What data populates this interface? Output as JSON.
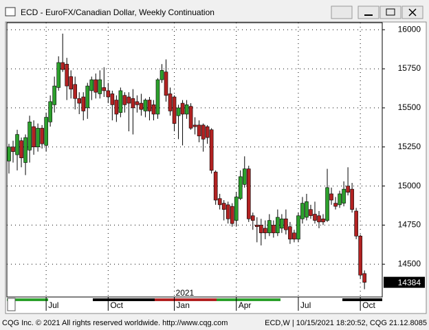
{
  "window_title": "ECD - EuroFX/Canadian Dollar, Weekly Continuation",
  "footer": {
    "left": "CQG Inc. © 2021 All rights reserved worldwide. http://www.cqg.com",
    "right": "ECD,W | 10/15/2021 18:20:52, CQG 21.12.8085"
  },
  "chart_data": {
    "type": "candlestick",
    "up_color": "#2ca02c",
    "down_color": "#b22222",
    "grid": true,
    "x_group_label": "2021",
    "xlim": [
      -0.5,
      90.3
    ],
    "xticks": [
      {
        "value": 9,
        "label": "Jul"
      },
      {
        "value": 24,
        "label": "Oct"
      },
      {
        "value": 40,
        "label": "Jan"
      },
      {
        "value": 55,
        "label": "Apr"
      },
      {
        "value": 70,
        "label": "Jul"
      },
      {
        "value": 85,
        "label": "Oct"
      }
    ],
    "ylim": [
      14290,
      16045
    ],
    "yticks": [
      14500,
      14750,
      15000,
      15250,
      15500,
      15750,
      16000
    ],
    "open": [
      15160,
      15250,
      15200,
      15290,
      15150,
      15230,
      15380,
      15250,
      15370,
      15260,
      15410,
      15520,
      15630,
      15790,
      15780,
      15700,
      15650,
      15560,
      15570,
      15500,
      15610,
      15680,
      15590,
      15630,
      15610,
      15590,
      15550,
      15470,
      15580,
      15570,
      15560,
      15540,
      15530,
      15480,
      15550,
      15520,
      15460,
      15680,
      15730,
      15590,
      15570,
      15450,
      15530,
      15460,
      15510,
      15390,
      15390,
      15390,
      15380,
      15360,
      15090,
      14920,
      14890,
      14880,
      14870,
      14780,
      14920,
      15010,
      15110,
      14810,
      14750,
      14750,
      14730,
      14700,
      14750,
      14700,
      14730,
      14790,
      14740,
      14700,
      14660,
      14790,
      14800,
      14850,
      14820,
      14810,
      14790,
      14780,
      14950,
      14890,
      14880,
      14890,
      15000,
      14980,
      14840,
      14680,
      14440
    ],
    "high": [
      15270,
      15290,
      15360,
      15310,
      15330,
      15450,
      15420,
      15400,
      15390,
      15470,
      15580,
      15700,
      15830,
      15975,
      15820,
      15740,
      15700,
      15600,
      15600,
      15660,
      15700,
      15720,
      15740,
      15760,
      15660,
      15610,
      15580,
      15630,
      15600,
      15600,
      15620,
      15580,
      15590,
      15560,
      15570,
      15550,
      15690,
      15780,
      15810,
      15630,
      15580,
      15520,
      15550,
      15550,
      15530,
      15440,
      15420,
      15400,
      15390,
      15370,
      15100,
      14950,
      14910,
      14900,
      14890,
      14960,
      15100,
      15190,
      15130,
      14830,
      14800,
      14790,
      14780,
      14820,
      14780,
      14850,
      14820,
      14850,
      14770,
      14720,
      14830,
      14930,
      14950,
      14880,
      14900,
      14840,
      14820,
      15110,
      14990,
      14930,
      14970,
      15030,
      15120,
      15020,
      14860,
      14690,
      14460
    ],
    "low": [
      15080,
      15150,
      15100,
      15120,
      15070,
      15150,
      15200,
      15220,
      15240,
      15220,
      15380,
      15470,
      15610,
      15730,
      15550,
      15560,
      15490,
      15460,
      15420,
      15430,
      15550,
      15560,
      15560,
      15570,
      15530,
      15420,
      15410,
      15440,
      15470,
      15350,
      15330,
      15470,
      15450,
      15440,
      15420,
      15420,
      15430,
      15660,
      15540,
      15450,
      15350,
      15300,
      15260,
      15430,
      15360,
      15330,
      15280,
      15220,
      15270,
      15080,
      14880,
      14850,
      14780,
      14760,
      14740,
      14740,
      14910,
      14990,
      14770,
      14720,
      14640,
      14620,
      14660,
      14680,
      14670,
      14680,
      14700,
      14690,
      14630,
      14640,
      14640,
      14760,
      14780,
      14790,
      14760,
      14730,
      14750,
      14770,
      14880,
      14850,
      14860,
      14870,
      14940,
      14830,
      14660,
      14410,
      14340
    ],
    "close": [
      15250,
      15220,
      15330,
      15180,
      15310,
      15410,
      15250,
      15370,
      15270,
      15440,
      15540,
      15640,
      15790,
      15745,
      15640,
      15620,
      15560,
      15530,
      15480,
      15640,
      15680,
      15600,
      15680,
      15610,
      15570,
      15520,
      15460,
      15610,
      15520,
      15530,
      15500,
      15520,
      15490,
      15550,
      15480,
      15460,
      15680,
      15740,
      15580,
      15480,
      15400,
      15500,
      15460,
      15520,
      15370,
      15380,
      15320,
      15300,
      15310,
      15100,
      14910,
      14880,
      14850,
      14790,
      14760,
      14930,
      15060,
      15110,
      14790,
      14780,
      14740,
      14700,
      14700,
      14780,
      14700,
      14800,
      14790,
      14720,
      14660,
      14660,
      14810,
      14890,
      14900,
      14810,
      14780,
      14770,
      14770,
      14990,
      14910,
      14870,
      14950,
      14980,
      14960,
      14850,
      14680,
      14430,
      14384
    ]
  }
}
